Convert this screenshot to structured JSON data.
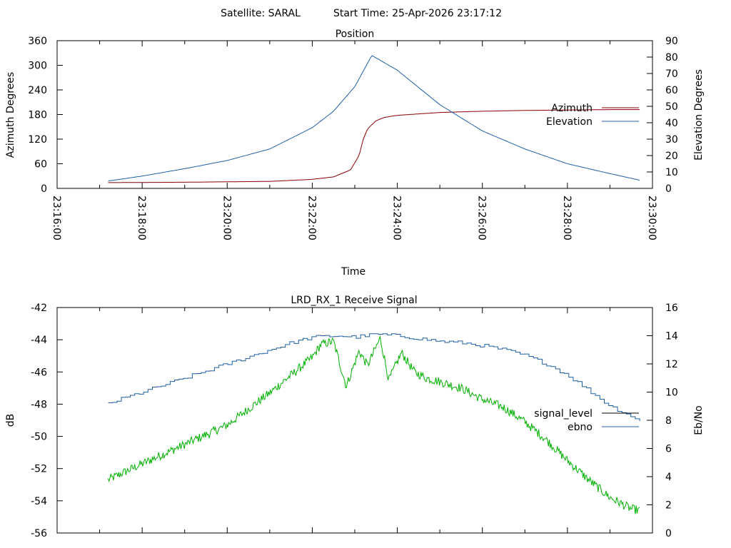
{
  "header": {
    "satellite": "Satellite: SARAL",
    "start_time": "Start Time: 25-Apr-2026 23:17:12"
  },
  "chart_data": [
    {
      "type": "line",
      "title": "Position",
      "xlabel": "Time",
      "ylabel_left": "Azimuth Degrees",
      "ylabel_right": "Elevation Degrees",
      "x_ticks": [
        "23:16:00",
        "23:18:00",
        "23:20:00",
        "23:22:00",
        "23:24:00",
        "23:26:00",
        "23:28:00",
        "23:30:00"
      ],
      "y_left_ticks": [
        0,
        60,
        120,
        180,
        240,
        300,
        360
      ],
      "y_right_ticks": [
        0,
        10,
        20,
        30,
        40,
        50,
        60,
        70,
        80,
        90
      ],
      "ylim_left": [
        0,
        360
      ],
      "ylim_right": [
        0,
        90
      ],
      "xlim_minutes": [
        0,
        14
      ],
      "legend_position": "right",
      "series": [
        {
          "name": "Azimuth",
          "axis": "left",
          "color": "#8b0000",
          "x_minutes": [
            1.2,
            3,
            5,
            6,
            6.5,
            6.9,
            7.1,
            7.2,
            7.3,
            7.5,
            7.7,
            8,
            9,
            10,
            11,
            12,
            13,
            13.7
          ],
          "values": [
            14,
            15,
            17,
            22,
            28,
            45,
            80,
            120,
            145,
            165,
            173,
            178,
            185,
            188,
            190,
            191,
            192,
            192
          ]
        },
        {
          "name": "Elevation",
          "axis": "right",
          "color": "#1f5fa8",
          "x_minutes": [
            1.2,
            2,
            3,
            4,
            5,
            6,
            6.5,
            7,
            7.4,
            8,
            9,
            10,
            11,
            12,
            13,
            13.7
          ],
          "values": [
            4.5,
            7.5,
            12,
            17,
            24,
            37,
            47,
            62,
            81,
            72,
            51,
            35,
            24,
            15,
            9,
            5
          ]
        }
      ]
    },
    {
      "type": "line",
      "title": "LRD_RX_1 Receive Signal",
      "ylabel_left": "dB",
      "ylabel_right": "Eb/No",
      "y_left_ticks": [
        -42,
        -44,
        -46,
        -48,
        -50,
        -52,
        -54,
        -56
      ],
      "y_right_ticks": [
        0,
        2,
        4,
        6,
        8,
        10,
        12,
        14,
        16
      ],
      "ylim_left": [
        -56,
        -42
      ],
      "ylim_right": [
        0,
        16
      ],
      "xlim_minutes": [
        0,
        14
      ],
      "legend_position": "right",
      "legend_entries": [
        {
          "name": "signal_level",
          "color": "#000000"
        },
        {
          "name": "ebno",
          "color": "#1f5fa8"
        }
      ],
      "series": [
        {
          "name": "signal_level",
          "axis": "left",
          "color": "#00b000",
          "x_minutes": [
            1.2,
            2,
            3,
            4,
            5,
            5.5,
            6,
            6.2,
            6.5,
            6.8,
            7.1,
            7.3,
            7.6,
            7.8,
            8.1,
            8.4,
            8.7,
            9,
            9.5,
            10,
            10.5,
            11,
            11.5,
            12,
            12.5,
            13,
            13.5,
            13.7
          ],
          "values": [
            -52.7,
            -51.7,
            -50.5,
            -49.3,
            -47.3,
            -46.2,
            -45.1,
            -44.3,
            -44.1,
            -46.9,
            -44.7,
            -45.6,
            -43.9,
            -46.5,
            -44.8,
            -46.0,
            -46.4,
            -46.6,
            -47.0,
            -47.7,
            -48.2,
            -49.1,
            -50.2,
            -51.5,
            -52.7,
            -53.8,
            -54.5,
            -54.6
          ],
          "noise": 0.28
        },
        {
          "name": "ebno",
          "axis": "right",
          "color": "#1f5fa8",
          "x_minutes": [
            1.2,
            2,
            3,
            4,
            5,
            5.5,
            6,
            6.6,
            7,
            7.5,
            8,
            8.5,
            9,
            9.5,
            10,
            10.5,
            11,
            11.5,
            12,
            12.5,
            13,
            13.5,
            13.7
          ],
          "values": [
            9.2,
            10.0,
            11.0,
            12.0,
            13.0,
            13.5,
            13.9,
            14.0,
            13.9,
            14.1,
            14.0,
            13.8,
            13.6,
            13.5,
            13.3,
            13.0,
            12.6,
            12.0,
            11.2,
            10.1,
            9.0,
            8.3,
            7.9
          ],
          "step": true
        }
      ]
    }
  ]
}
